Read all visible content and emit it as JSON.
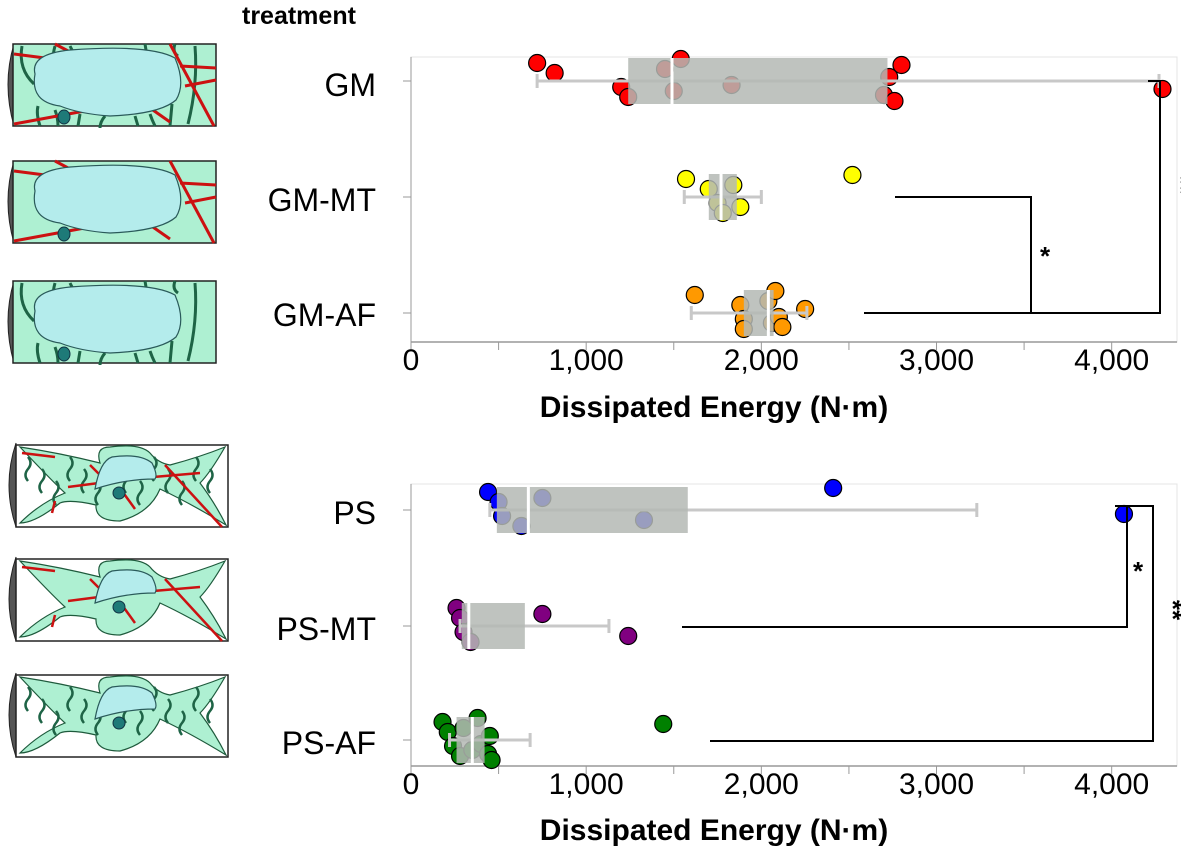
{
  "header": {
    "title": "treatment"
  },
  "colors": {
    "GM": "#ff0000",
    "GM-MT": "#ffff00",
    "GM-AF": "#ff9900",
    "PS": "#0000ff",
    "PS-MT": "#800080",
    "PS-AF": "#008000",
    "box": "#b4b9b4",
    "whisker": "#c8c8c8",
    "cell_fill": "#aef0d2",
    "nucleus_fill": "#b4ecec",
    "actin": "#1e6446",
    "microtubule": "#cc1111",
    "nucleolus": "#1e7a78"
  },
  "chart_data": [
    {
      "type": "box-scatter",
      "orientation": "horizontal",
      "title": "",
      "xlabel": "Dissipated Energy (N·m)",
      "ylabel": "treatment",
      "xlim": [
        0,
        4350
      ],
      "xticks": [
        0,
        1000,
        2000,
        3000,
        4000
      ],
      "xtick_labels": [
        "0",
        "1,000",
        "2,000",
        "3,000",
        "4,000"
      ],
      "categories": [
        "GM",
        "GM-MT",
        "GM-AF"
      ],
      "series": [
        {
          "name": "GM",
          "box": {
            "q1": 1240,
            "median": 1490,
            "q3": 2720
          },
          "whiskers": [
            720,
            4270
          ],
          "points": [
            720,
            820,
            1200,
            1240,
            1450,
            1500,
            1540,
            1830,
            2700,
            2730,
            2760,
            2800,
            4290
          ]
        },
        {
          "name": "GM-MT",
          "box": {
            "q1": 1700,
            "median": 1770,
            "q3": 1860
          },
          "whiskers": [
            1560,
            2000
          ],
          "points": [
            1570,
            1700,
            1750,
            1780,
            1840,
            1880,
            2520
          ]
        },
        {
          "name": "GM-AF",
          "box": {
            "q1": 1900,
            "median": 2040,
            "q3": 2070
          },
          "whiskers": [
            1600,
            2260
          ],
          "points": [
            1620,
            1880,
            1900,
            1900,
            2040,
            2060,
            2080,
            2100,
            2120,
            2250
          ]
        }
      ],
      "significance": [
        {
          "from": "GM-MT",
          "to": "GM-AF",
          "label": "*"
        },
        {
          "from": "GM",
          "to": "GM-AF",
          "label": "**"
        }
      ]
    },
    {
      "type": "box-scatter",
      "orientation": "horizontal",
      "title": "",
      "xlabel": "Dissipated Energy (N·m)",
      "ylabel": "treatment",
      "xlim": [
        0,
        4350
      ],
      "xticks": [
        0,
        1000,
        2000,
        3000,
        4000
      ],
      "xtick_labels": [
        "0",
        "1,000",
        "2,000",
        "3,000",
        "4,000"
      ],
      "categories": [
        "PS",
        "PS-MT",
        "PS-AF"
      ],
      "series": [
        {
          "name": "PS",
          "box": {
            "q1": 490,
            "median": 670,
            "q3": 1580
          },
          "whiskers": [
            450,
            3230
          ],
          "points": [
            440,
            500,
            520,
            630,
            750,
            1330,
            2410,
            4070
          ]
        },
        {
          "name": "PS-MT",
          "box": {
            "q1": 290,
            "median": 330,
            "q3": 650
          },
          "whiskers": [
            280,
            1130
          ],
          "points": [
            260,
            280,
            300,
            340,
            750,
            1240
          ]
        },
        {
          "name": "PS-AF",
          "box": {
            "q1": 260,
            "median": 350,
            "q3": 420
          },
          "whiskers": [
            220,
            680
          ],
          "points": [
            180,
            210,
            240,
            280,
            300,
            350,
            380,
            400,
            440,
            450,
            460,
            1440
          ]
        }
      ],
      "significance": [
        {
          "from": "PS",
          "to": "PS-MT",
          "label": "*"
        },
        {
          "from": "PS",
          "to": "PS-AF",
          "label": "**"
        }
      ]
    }
  ]
}
